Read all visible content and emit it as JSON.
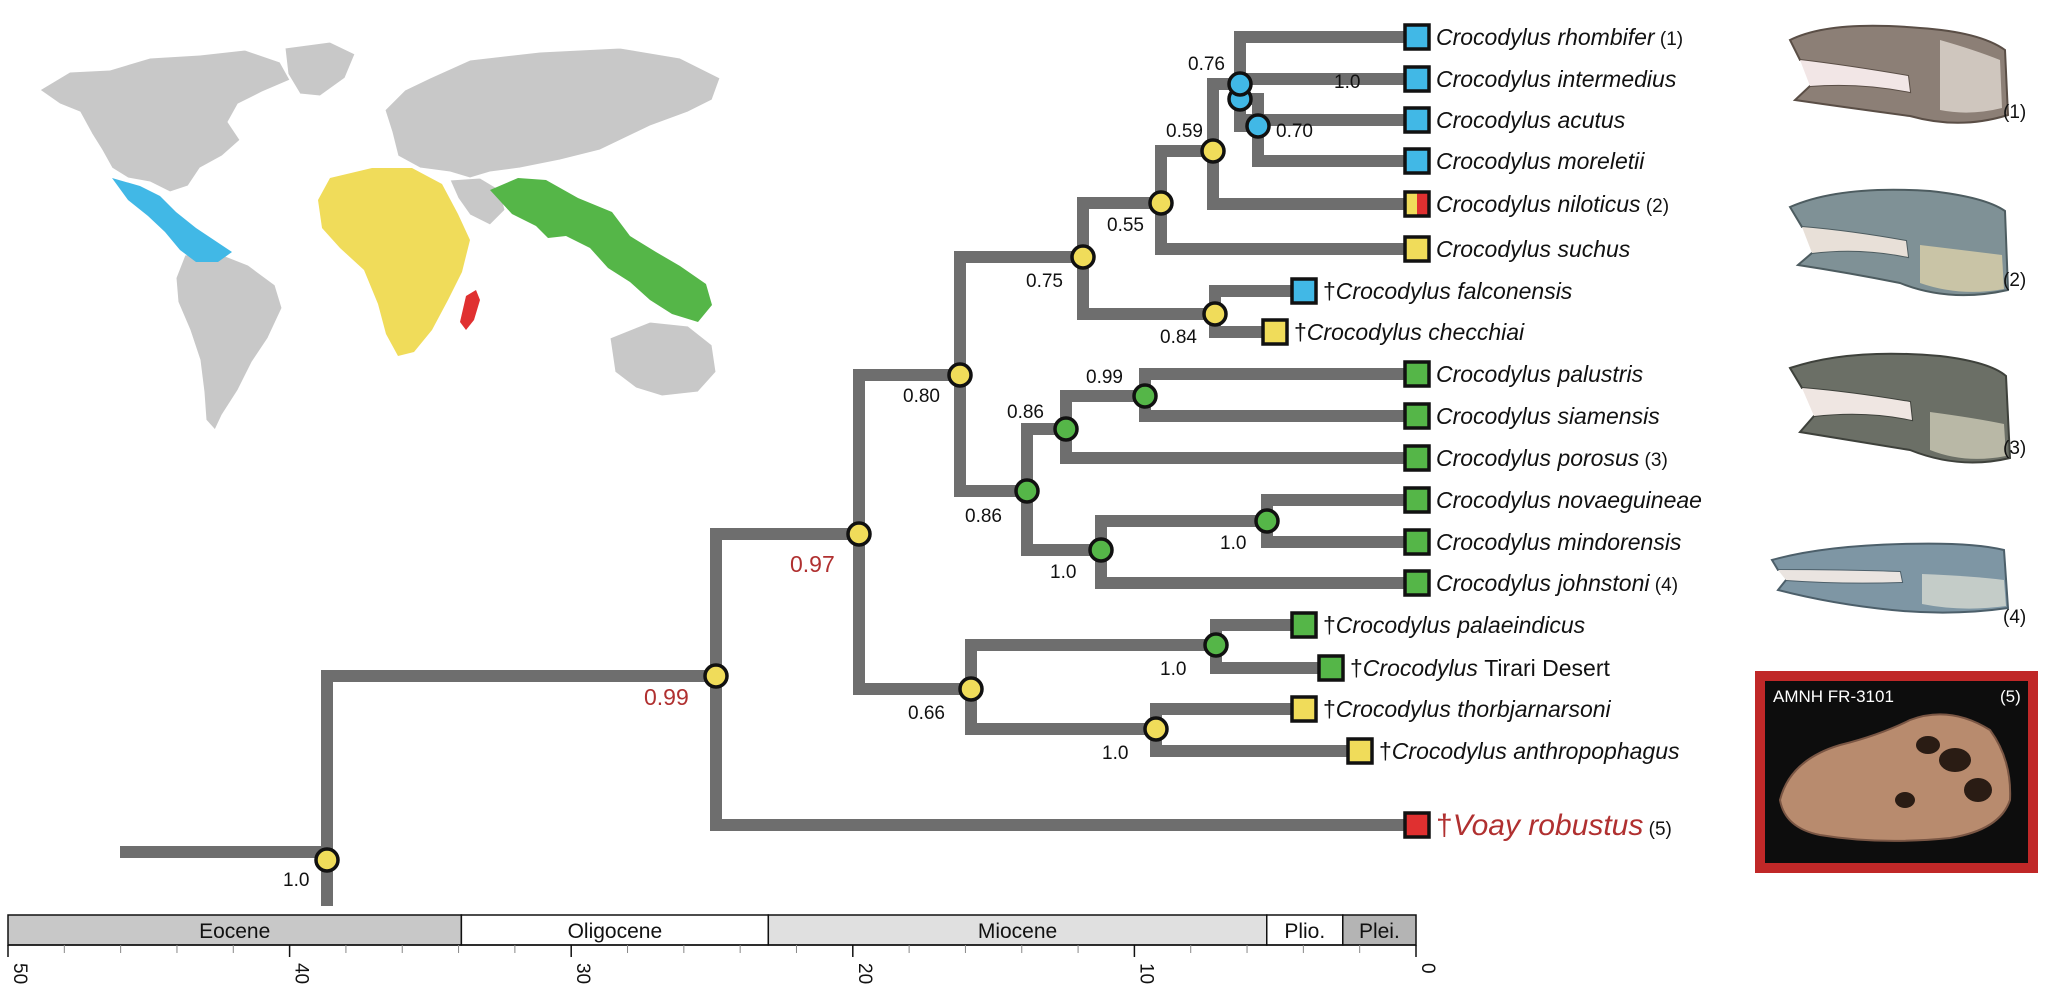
{
  "colors": {
    "branch": "#6e6e6e",
    "americas": "#41b8e6",
    "africa": "#f0dc5a",
    "asia_australia": "#55b648",
    "madagascar": "#e03030",
    "land": "#c8c8c8",
    "highlight": "#b03030",
    "eocene": "#c8c8c8",
    "oligocene": "#ffffff",
    "miocene": "#e0e0e0",
    "pliocene": "#ffffff",
    "pleistocene": "#b4b4b4"
  },
  "taxa": [
    {
      "dagger": "",
      "genus": "Crocodylus",
      "species": "rhombifer",
      "ref": "(1)",
      "region": "americas"
    },
    {
      "dagger": "",
      "genus": "Crocodylus",
      "species": "intermedius",
      "ref": "",
      "region": "americas"
    },
    {
      "dagger": "",
      "genus": "Crocodylus",
      "species": "acutus",
      "ref": "",
      "region": "americas"
    },
    {
      "dagger": "",
      "genus": "Crocodylus",
      "species": "moreletii",
      "ref": "",
      "region": "americas"
    },
    {
      "dagger": "",
      "genus": "Crocodylus",
      "species": "niloticus",
      "ref": "(2)",
      "region": "africa+madagascar"
    },
    {
      "dagger": "",
      "genus": "Crocodylus",
      "species": "suchus",
      "ref": "",
      "region": "africa"
    },
    {
      "dagger": "†",
      "genus": "Crocodylus",
      "species": "falconensis",
      "ref": "",
      "region": "americas"
    },
    {
      "dagger": "†",
      "genus": "Crocodylus",
      "species": "checchiai",
      "ref": "",
      "region": "africa"
    },
    {
      "dagger": "",
      "genus": "Crocodylus",
      "species": "palustris",
      "ref": "",
      "region": "asia_australia"
    },
    {
      "dagger": "",
      "genus": "Crocodylus",
      "species": "siamensis",
      "ref": "",
      "region": "asia_australia"
    },
    {
      "dagger": "",
      "genus": "Crocodylus",
      "species": "porosus",
      "ref": "(3)",
      "region": "asia_australia"
    },
    {
      "dagger": "",
      "genus": "Crocodylus",
      "species": "novaeguineae",
      "ref": "",
      "region": "asia_australia"
    },
    {
      "dagger": "",
      "genus": "Crocodylus",
      "species": "mindorensis",
      "ref": "",
      "region": "asia_australia"
    },
    {
      "dagger": "",
      "genus": "Crocodylus",
      "species": "johnstoni",
      "ref": "(4)",
      "region": "asia_australia"
    },
    {
      "dagger": "†",
      "genus": "Crocodylus",
      "species": "palaeindicus",
      "ref": "",
      "region": "asia_australia"
    },
    {
      "dagger": "†",
      "genus": "Crocodylus",
      "species": "Tirari Desert",
      "ref": "",
      "region": "asia_australia",
      "species_upright": true
    },
    {
      "dagger": "†",
      "genus": "Crocodylus",
      "species": "thorbjarnarsoni",
      "ref": "",
      "region": "africa"
    },
    {
      "dagger": "†",
      "genus": "Crocodylus",
      "species": "anthropophagus",
      "ref": "",
      "region": "africa"
    }
  ],
  "outgroup": {
    "dagger": "†",
    "name": "Voay robustus",
    "ref": "(5)",
    "region": "madagascar"
  },
  "node_support": [
    "0.76",
    "1.0",
    "0.70",
    "0.59",
    "0.55",
    "0.75",
    "0.84",
    "0.80",
    "0.99",
    "0.86",
    "0.86",
    "1.0",
    "1.0",
    "0.97",
    "1.0",
    "0.66",
    "1.0",
    "0.99",
    "1.0"
  ],
  "timescale": {
    "epochs": [
      {
        "label": "Eocene",
        "start_ma": 50,
        "end_ma": 33.9,
        "color_key": "eocene"
      },
      {
        "label": "Oligocene",
        "start_ma": 33.9,
        "end_ma": 23.0,
        "color_key": "oligocene"
      },
      {
        "label": "Miocene",
        "start_ma": 23.0,
        "end_ma": 5.3,
        "color_key": "miocene"
      },
      {
        "label": "Plio.",
        "start_ma": 5.3,
        "end_ma": 2.6,
        "color_key": "pliocene"
      },
      {
        "label": "Plei.",
        "start_ma": 2.6,
        "end_ma": 0,
        "color_key": "pleistocene"
      }
    ],
    "major_ticks": [
      "50",
      "40",
      "30",
      "20",
      "10",
      "0"
    ]
  },
  "images": {
    "heads": [
      "(1)",
      "(2)",
      "(3)",
      "(4)"
    ],
    "fossil": {
      "specimen": "AMNH FR-3101",
      "ref": "(5)"
    }
  }
}
